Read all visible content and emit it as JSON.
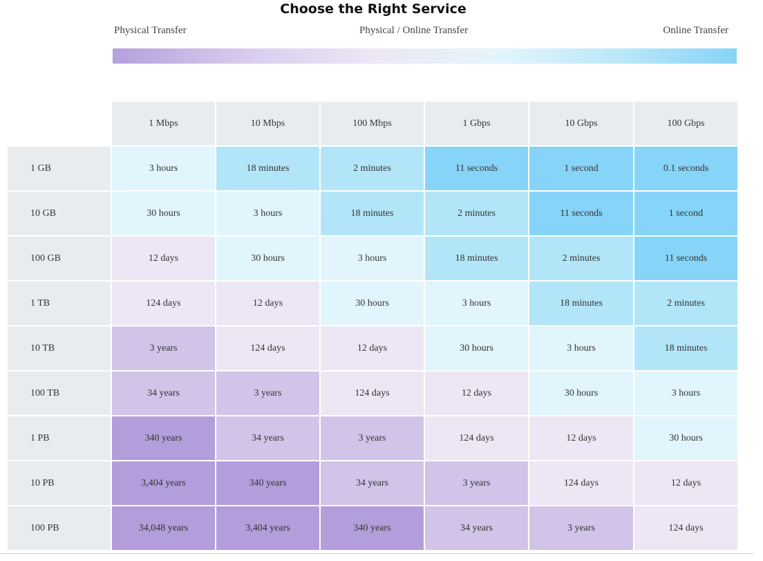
{
  "title": "Choose the Right Service",
  "scale": {
    "left": "Physical Transfer",
    "middle": "Physical / Online Transfer",
    "right": "Online Transfer"
  },
  "table": {
    "columns": [
      "1 Mbps",
      "10 Mbps",
      "100 Mbps",
      "1 Gbps",
      "10 Gbps",
      "100 Gbps"
    ],
    "rows": [
      {
        "label": "1 GB",
        "cells": [
          "3 hours",
          "18 minutes",
          "2 minutes",
          "11 seconds",
          "1 second",
          "0.1 seconds"
        ],
        "levels": [
          3,
          2,
          2,
          1,
          1,
          1
        ]
      },
      {
        "label": "10 GB",
        "cells": [
          "30 hours",
          "3 hours",
          "18 minutes",
          "2 minutes",
          "11 seconds",
          "1 second"
        ],
        "levels": [
          3,
          3,
          2,
          2,
          1,
          1
        ]
      },
      {
        "label": "100 GB",
        "cells": [
          "12 days",
          "30 hours",
          "3 hours",
          "18 minutes",
          "2 minutes",
          "11 seconds"
        ],
        "levels": [
          4,
          3,
          3,
          2,
          2,
          1
        ]
      },
      {
        "label": "1 TB",
        "cells": [
          "124 days",
          "12 days",
          "30 hours",
          "3 hours",
          "18 minutes",
          "2 minutes"
        ],
        "levels": [
          4,
          4,
          3,
          3,
          2,
          2
        ]
      },
      {
        "label": "10 TB",
        "cells": [
          "3 years",
          "124 days",
          "12 days",
          "30 hours",
          "3 hours",
          "18 minutes"
        ],
        "levels": [
          5,
          4,
          4,
          3,
          3,
          2
        ]
      },
      {
        "label": "100 TB",
        "cells": [
          "34 years",
          "3 years",
          "124 days",
          "12 days",
          "30 hours",
          "3 hours"
        ],
        "levels": [
          5,
          5,
          4,
          4,
          3,
          3
        ]
      },
      {
        "label": "1 PB",
        "cells": [
          "340 years",
          "34 years",
          "3 years",
          "124 days",
          "12 days",
          "30 hours"
        ],
        "levels": [
          6,
          5,
          5,
          4,
          4,
          3
        ]
      },
      {
        "label": "10 PB",
        "cells": [
          "3,404 years",
          "340 years",
          "34 years",
          "3 years",
          "124 days",
          "12 days"
        ],
        "levels": [
          6,
          6,
          5,
          5,
          4,
          4
        ]
      },
      {
        "label": "100 PB",
        "cells": [
          "34,048 years",
          "3,404 years",
          "340 years",
          "34 years",
          "3 years",
          "124 days"
        ],
        "levels": [
          6,
          6,
          6,
          5,
          5,
          4
        ]
      }
    ]
  }
}
